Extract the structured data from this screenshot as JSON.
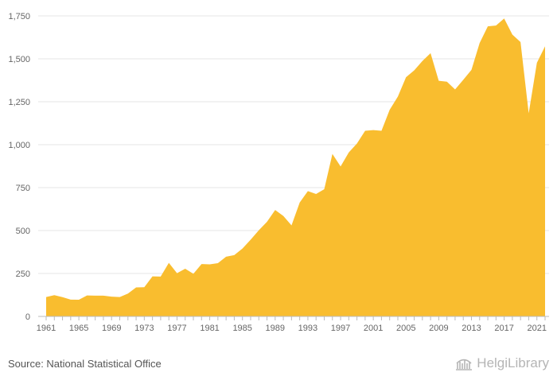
{
  "source_text": "Source: National Statistical Office",
  "logo_text": "HelgiLibrary",
  "chart_data": {
    "type": "area",
    "title": "",
    "xlabel": "",
    "ylabel": "",
    "ylim": [
      0,
      1750
    ],
    "yticks": [
      0,
      250,
      500,
      750,
      1000,
      1250,
      1500,
      1750
    ],
    "ytick_labels": [
      "0",
      "250",
      "500",
      "750",
      "1,000",
      "1,250",
      "1,500",
      "1,750"
    ],
    "xtick_labels": [
      "1961",
      "1965",
      "1969",
      "1973",
      "1977",
      "1981",
      "1985",
      "1989",
      "1993",
      "1997",
      "2001",
      "2005",
      "2009",
      "2013",
      "2017",
      "2021"
    ],
    "grid": true,
    "fill_color": "#f9bd2f",
    "x": [
      1961,
      1962,
      1963,
      1964,
      1965,
      1966,
      1967,
      1968,
      1969,
      1970,
      1971,
      1972,
      1973,
      1974,
      1975,
      1976,
      1977,
      1978,
      1979,
      1980,
      1981,
      1982,
      1983,
      1984,
      1985,
      1986,
      1987,
      1988,
      1989,
      1990,
      1991,
      1992,
      1993,
      1994,
      1995,
      1996,
      1997,
      1998,
      1999,
      2000,
      2001,
      2002,
      2003,
      2004,
      2005,
      2006,
      2007,
      2008,
      2009,
      2010,
      2011,
      2012,
      2013,
      2014,
      2015,
      2016,
      2017,
      2018,
      2019,
      2020,
      2021,
      2022
    ],
    "values": [
      113,
      124,
      112,
      98,
      97,
      122,
      121,
      121,
      115,
      113,
      133,
      169,
      170,
      233,
      232,
      312,
      252,
      278,
      248,
      305,
      303,
      310,
      348,
      357,
      395,
      447,
      502,
      551,
      620,
      585,
      530,
      663,
      730,
      713,
      741,
      946,
      873,
      955,
      1007,
      1081,
      1085,
      1081,
      1203,
      1280,
      1393,
      1433,
      1487,
      1533,
      1372,
      1367,
      1322,
      1378,
      1436,
      1592,
      1689,
      1694,
      1735,
      1641,
      1598,
      1183,
      1477,
      1573
    ]
  }
}
